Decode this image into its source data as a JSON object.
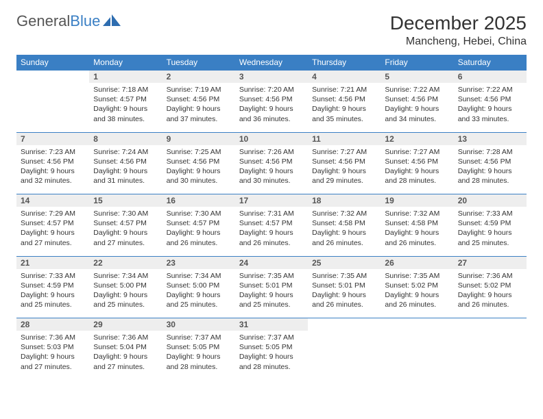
{
  "brand": {
    "general": "General",
    "blue": "Blue"
  },
  "title": "December 2025",
  "location": "Mancheng, Hebei, China",
  "colors": {
    "header_bg": "#3a7fc4",
    "header_text": "#ffffff",
    "daynum_bg": "#eeeeee",
    "daynum_border": "#3a7fc4",
    "body_text": "#333333",
    "logo_gray": "#555555",
    "logo_blue": "#3a7fc4",
    "page_bg": "#ffffff"
  },
  "weekdays": [
    "Sunday",
    "Monday",
    "Tuesday",
    "Wednesday",
    "Thursday",
    "Friday",
    "Saturday"
  ],
  "first_weekday_index": 1,
  "days": [
    {
      "n": 1,
      "sunrise": "7:18 AM",
      "sunset": "4:57 PM",
      "daylight": "9 hours and 38 minutes."
    },
    {
      "n": 2,
      "sunrise": "7:19 AM",
      "sunset": "4:56 PM",
      "daylight": "9 hours and 37 minutes."
    },
    {
      "n": 3,
      "sunrise": "7:20 AM",
      "sunset": "4:56 PM",
      "daylight": "9 hours and 36 minutes."
    },
    {
      "n": 4,
      "sunrise": "7:21 AM",
      "sunset": "4:56 PM",
      "daylight": "9 hours and 35 minutes."
    },
    {
      "n": 5,
      "sunrise": "7:22 AM",
      "sunset": "4:56 PM",
      "daylight": "9 hours and 34 minutes."
    },
    {
      "n": 6,
      "sunrise": "7:22 AM",
      "sunset": "4:56 PM",
      "daylight": "9 hours and 33 minutes."
    },
    {
      "n": 7,
      "sunrise": "7:23 AM",
      "sunset": "4:56 PM",
      "daylight": "9 hours and 32 minutes."
    },
    {
      "n": 8,
      "sunrise": "7:24 AM",
      "sunset": "4:56 PM",
      "daylight": "9 hours and 31 minutes."
    },
    {
      "n": 9,
      "sunrise": "7:25 AM",
      "sunset": "4:56 PM",
      "daylight": "9 hours and 30 minutes."
    },
    {
      "n": 10,
      "sunrise": "7:26 AM",
      "sunset": "4:56 PM",
      "daylight": "9 hours and 30 minutes."
    },
    {
      "n": 11,
      "sunrise": "7:27 AM",
      "sunset": "4:56 PM",
      "daylight": "9 hours and 29 minutes."
    },
    {
      "n": 12,
      "sunrise": "7:27 AM",
      "sunset": "4:56 PM",
      "daylight": "9 hours and 28 minutes."
    },
    {
      "n": 13,
      "sunrise": "7:28 AM",
      "sunset": "4:56 PM",
      "daylight": "9 hours and 28 minutes."
    },
    {
      "n": 14,
      "sunrise": "7:29 AM",
      "sunset": "4:57 PM",
      "daylight": "9 hours and 27 minutes."
    },
    {
      "n": 15,
      "sunrise": "7:30 AM",
      "sunset": "4:57 PM",
      "daylight": "9 hours and 27 minutes."
    },
    {
      "n": 16,
      "sunrise": "7:30 AM",
      "sunset": "4:57 PM",
      "daylight": "9 hours and 26 minutes."
    },
    {
      "n": 17,
      "sunrise": "7:31 AM",
      "sunset": "4:57 PM",
      "daylight": "9 hours and 26 minutes."
    },
    {
      "n": 18,
      "sunrise": "7:32 AM",
      "sunset": "4:58 PM",
      "daylight": "9 hours and 26 minutes."
    },
    {
      "n": 19,
      "sunrise": "7:32 AM",
      "sunset": "4:58 PM",
      "daylight": "9 hours and 26 minutes."
    },
    {
      "n": 20,
      "sunrise": "7:33 AM",
      "sunset": "4:59 PM",
      "daylight": "9 hours and 25 minutes."
    },
    {
      "n": 21,
      "sunrise": "7:33 AM",
      "sunset": "4:59 PM",
      "daylight": "9 hours and 25 minutes."
    },
    {
      "n": 22,
      "sunrise": "7:34 AM",
      "sunset": "5:00 PM",
      "daylight": "9 hours and 25 minutes."
    },
    {
      "n": 23,
      "sunrise": "7:34 AM",
      "sunset": "5:00 PM",
      "daylight": "9 hours and 25 minutes."
    },
    {
      "n": 24,
      "sunrise": "7:35 AM",
      "sunset": "5:01 PM",
      "daylight": "9 hours and 25 minutes."
    },
    {
      "n": 25,
      "sunrise": "7:35 AM",
      "sunset": "5:01 PM",
      "daylight": "9 hours and 26 minutes."
    },
    {
      "n": 26,
      "sunrise": "7:35 AM",
      "sunset": "5:02 PM",
      "daylight": "9 hours and 26 minutes."
    },
    {
      "n": 27,
      "sunrise": "7:36 AM",
      "sunset": "5:02 PM",
      "daylight": "9 hours and 26 minutes."
    },
    {
      "n": 28,
      "sunrise": "7:36 AM",
      "sunset": "5:03 PM",
      "daylight": "9 hours and 27 minutes."
    },
    {
      "n": 29,
      "sunrise": "7:36 AM",
      "sunset": "5:04 PM",
      "daylight": "9 hours and 27 minutes."
    },
    {
      "n": 30,
      "sunrise": "7:37 AM",
      "sunset": "5:05 PM",
      "daylight": "9 hours and 28 minutes."
    },
    {
      "n": 31,
      "sunrise": "7:37 AM",
      "sunset": "5:05 PM",
      "daylight": "9 hours and 28 minutes."
    }
  ],
  "labels": {
    "sunrise": "Sunrise:",
    "sunset": "Sunset:",
    "daylight": "Daylight:"
  }
}
